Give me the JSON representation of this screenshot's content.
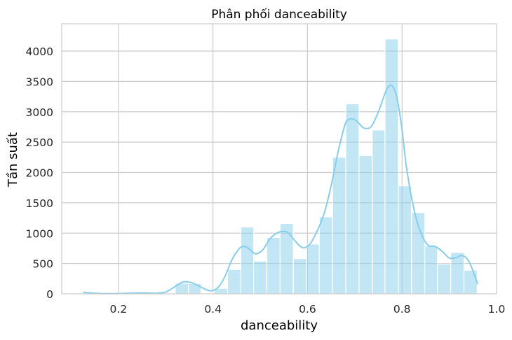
{
  "chart_data": {
    "type": "histogram",
    "title": "Phân phối danceability",
    "xlabel": "danceability",
    "ylabel": "Tần suất",
    "xlim": [
      0.08,
      1.0
    ],
    "ylim": [
      0,
      4450
    ],
    "x_ticks": [
      0.2,
      0.4,
      0.6,
      0.8,
      1.0
    ],
    "x_tick_labels": [
      "0.2",
      "0.4",
      "0.6",
      "0.8",
      "1.0"
    ],
    "y_ticks": [
      0,
      500,
      1000,
      1500,
      2000,
      2500,
      3000,
      3500,
      4000
    ],
    "y_tick_labels": [
      "0",
      "500",
      "1000",
      "1500",
      "2000",
      "2500",
      "3000",
      "3500",
      "4000"
    ],
    "grid": true,
    "bar_color": "#87ceeb",
    "kde_color": "#87ceeb",
    "bins": [
      {
        "x0": 0.125,
        "x1": 0.153,
        "count": 30
      },
      {
        "x0": 0.153,
        "x1": 0.181,
        "count": 5
      },
      {
        "x0": 0.181,
        "x1": 0.209,
        "count": 0
      },
      {
        "x0": 0.209,
        "x1": 0.236,
        "count": 10
      },
      {
        "x0": 0.236,
        "x1": 0.264,
        "count": 20
      },
      {
        "x0": 0.264,
        "x1": 0.292,
        "count": 10
      },
      {
        "x0": 0.292,
        "x1": 0.32,
        "count": 0
      },
      {
        "x0": 0.32,
        "x1": 0.348,
        "count": 175
      },
      {
        "x0": 0.348,
        "x1": 0.375,
        "count": 170
      },
      {
        "x0": 0.375,
        "x1": 0.403,
        "count": 5
      },
      {
        "x0": 0.403,
        "x1": 0.431,
        "count": 90
      },
      {
        "x0": 0.431,
        "x1": 0.459,
        "count": 400
      },
      {
        "x0": 0.459,
        "x1": 0.486,
        "count": 1100
      },
      {
        "x0": 0.486,
        "x1": 0.514,
        "count": 540
      },
      {
        "x0": 0.514,
        "x1": 0.542,
        "count": 930
      },
      {
        "x0": 0.542,
        "x1": 0.57,
        "count": 1160
      },
      {
        "x0": 0.57,
        "x1": 0.598,
        "count": 580
      },
      {
        "x0": 0.598,
        "x1": 0.625,
        "count": 820
      },
      {
        "x0": 0.625,
        "x1": 0.653,
        "count": 1270
      },
      {
        "x0": 0.653,
        "x1": 0.681,
        "count": 2250
      },
      {
        "x0": 0.681,
        "x1": 0.709,
        "count": 3130
      },
      {
        "x0": 0.709,
        "x1": 0.737,
        "count": 2280
      },
      {
        "x0": 0.737,
        "x1": 0.764,
        "count": 2700
      },
      {
        "x0": 0.764,
        "x1": 0.792,
        "count": 4200
      },
      {
        "x0": 0.792,
        "x1": 0.82,
        "count": 1780
      },
      {
        "x0": 0.82,
        "x1": 0.848,
        "count": 1340
      },
      {
        "x0": 0.848,
        "x1": 0.875,
        "count": 790
      },
      {
        "x0": 0.875,
        "x1": 0.903,
        "count": 490
      },
      {
        "x0": 0.903,
        "x1": 0.931,
        "count": 680
      },
      {
        "x0": 0.931,
        "x1": 0.959,
        "count": 390
      }
    ],
    "kde": {
      "x": [
        0.125,
        0.14,
        0.16,
        0.18,
        0.2,
        0.22,
        0.24,
        0.26,
        0.28,
        0.3,
        0.32,
        0.335,
        0.35,
        0.365,
        0.38,
        0.395,
        0.41,
        0.425,
        0.44,
        0.455,
        0.465,
        0.475,
        0.49,
        0.505,
        0.52,
        0.535,
        0.55,
        0.56,
        0.575,
        0.59,
        0.605,
        0.62,
        0.635,
        0.65,
        0.665,
        0.68,
        0.69,
        0.7,
        0.71,
        0.72,
        0.735,
        0.75,
        0.76,
        0.77,
        0.78,
        0.79,
        0.8,
        0.81,
        0.825,
        0.84,
        0.855,
        0.87,
        0.885,
        0.9,
        0.915,
        0.925,
        0.935,
        0.945,
        0.96
      ],
      "y": [
        25,
        15,
        5,
        3,
        5,
        10,
        15,
        15,
        10,
        30,
        120,
        190,
        195,
        150,
        90,
        50,
        100,
        280,
        560,
        740,
        780,
        750,
        660,
        720,
        900,
        1000,
        1030,
        1000,
        860,
        760,
        820,
        1030,
        1320,
        1780,
        2350,
        2800,
        2880,
        2870,
        2800,
        2730,
        2760,
        3000,
        3220,
        3400,
        3420,
        3200,
        2700,
        2050,
        1400,
        1000,
        800,
        780,
        700,
        590,
        600,
        630,
        600,
        480,
        160
      ]
    }
  }
}
